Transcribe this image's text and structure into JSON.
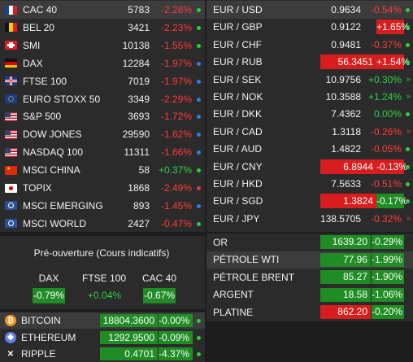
{
  "colors": {
    "neg_bg": "#d71d1d",
    "pos_bg": "#1f8c24",
    "neg_text": "#ff3b3b",
    "pos_text": "#2fd046"
  },
  "indices": [
    {
      "name": "CAC 40",
      "value": "5783",
      "change": "-2.28%",
      "flag": "fr",
      "dir": "neg",
      "dot": "green-dot"
    },
    {
      "name": "BEL 20",
      "value": "3421",
      "change": "-2.23%",
      "flag": "be",
      "dir": "neg",
      "dot": "green-dot"
    },
    {
      "name": "SMI",
      "value": "10138",
      "change": "-1.55%",
      "flag": "ch",
      "dir": "neg",
      "dot": "green-dot"
    },
    {
      "name": "DAX",
      "value": "12284",
      "change": "-1.97%",
      "flag": "de",
      "dir": "neg",
      "dot": "blue-dot"
    },
    {
      "name": "FTSE 100",
      "value": "7019",
      "change": "-1.97%",
      "flag": "gb",
      "dir": "neg",
      "dot": "blue-dot"
    },
    {
      "name": "EURO STOXX 50",
      "value": "3349",
      "change": "-2.29%",
      "flag": "eu",
      "dir": "neg",
      "dot": "blue-dot"
    },
    {
      "name": "S&P 500",
      "value": "3693",
      "change": "-1.72%",
      "flag": "us",
      "dir": "neg",
      "dot": "blue-dot"
    },
    {
      "name": "DOW JONES",
      "value": "29590",
      "change": "-1.62%",
      "flag": "us",
      "dir": "neg",
      "dot": "blue-dot"
    },
    {
      "name": "NASDAQ 100",
      "value": "11311",
      "change": "-1.66%",
      "flag": "us",
      "dir": "neg",
      "dot": "blue-dot"
    },
    {
      "name": "MSCI CHINA",
      "value": "58",
      "change": "+0.37%",
      "flag": "cn",
      "dir": "pos",
      "dot": "green-dot"
    },
    {
      "name": "TOPIX",
      "value": "1868",
      "change": "-2.49%",
      "flag": "jp",
      "dir": "neg",
      "dot": "red-dot"
    },
    {
      "name": "MSCI EMERGING",
      "value": "893",
      "change": "-1.45%",
      "flag": "un",
      "dir": "neg",
      "dot": "blue-dot"
    },
    {
      "name": "MSCI WORLD",
      "value": "2427",
      "change": "-0.47%",
      "flag": "un",
      "dir": "neg",
      "dot": "green-dot"
    }
  ],
  "forex": [
    {
      "pair": "EUR / USD",
      "value": "0.9634",
      "change": "-0.54%",
      "valbg": "",
      "chgstyle": "neg",
      "mark": "dot"
    },
    {
      "pair": "EUR / GBP",
      "value": "0.9122",
      "change": "+1.65%",
      "valbg": "",
      "chgstyle": "bgneg",
      "mark": "dot"
    },
    {
      "pair": "EUR / CHF",
      "value": "0.9481",
      "change": "-0.37%",
      "valbg": "",
      "chgstyle": "neg",
      "mark": "dot"
    },
    {
      "pair": "EUR / RUB",
      "value": "56.3451",
      "change": "+1.54%",
      "valbg": "bgneg",
      "chgstyle": "bgneg",
      "mark": "dot"
    },
    {
      "pair": "EUR / SEK",
      "value": "10.9756",
      "change": "+0.30%",
      "valbg": "",
      "chgstyle": "pos",
      "mark": "arrow"
    },
    {
      "pair": "EUR / NOK",
      "value": "10.3588",
      "change": "+1.24%",
      "valbg": "",
      "chgstyle": "pos",
      "mark": "arrow"
    },
    {
      "pair": "EUR / DKK",
      "value": "7.4362",
      "change": "0.00%",
      "valbg": "",
      "chgstyle": "pos",
      "mark": "dot"
    },
    {
      "pair": "EUR / CAD",
      "value": "1.3118",
      "change": "-0.26%",
      "valbg": "",
      "chgstyle": "neg",
      "mark": "arrow"
    },
    {
      "pair": "EUR / AUD",
      "value": "1.4822",
      "change": "-0.05%",
      "valbg": "",
      "chgstyle": "neg",
      "mark": "dot"
    },
    {
      "pair": "EUR / CNY",
      "value": "6.8944",
      "change": "-0.13%",
      "valbg": "bgneg",
      "chgstyle": "bgneg",
      "mark": "dot"
    },
    {
      "pair": "EUR / HKD",
      "value": "7.5633",
      "change": "-0.51%",
      "valbg": "",
      "chgstyle": "neg",
      "mark": "dot"
    },
    {
      "pair": "EUR / SGD",
      "value": "1.3824",
      "change": "-0.17%",
      "valbg": "bgneg",
      "chgstyle": "bgpos",
      "mark": "dot"
    },
    {
      "pair": "EUR / JPY",
      "value": "138.5705",
      "change": "-0.32%",
      "valbg": "",
      "chgstyle": "neg",
      "mark": "arrow"
    }
  ],
  "pre": {
    "title": "Pré-ouverture (Cours indicatifs)",
    "items": [
      {
        "label": "DAX",
        "value": "-0.79%",
        "style": "bgpos"
      },
      {
        "label": "FTSE 100",
        "value": "+0.04%",
        "style": "pos"
      },
      {
        "label": "CAC 40",
        "value": "-0.67%",
        "style": "bgpos"
      }
    ]
  },
  "commodities": [
    {
      "name": "OR",
      "value": "1639.20",
      "change": "-0.29%"
    },
    {
      "name": "PÉTROLE WTI",
      "value": "77.96",
      "change": "-1.99%"
    },
    {
      "name": "PÉTROLE BRENT",
      "value": "85.27",
      "change": "-1.90%"
    },
    {
      "name": "ARGENT",
      "value": "18.58",
      "change": "-1.06%"
    },
    {
      "name": "PLATINE",
      "value": "862.20",
      "change": "-0.20%"
    }
  ],
  "crypto": [
    {
      "name": "BITCOIN",
      "value": "18804.3600",
      "change": "-0.00%",
      "icon": "₿"
    },
    {
      "name": "ETHEREUM",
      "value": "1292.9500",
      "change": "-0.09%",
      "icon": "◆"
    },
    {
      "name": "RIPPLE",
      "value": "0.4701",
      "change": "-4.37%",
      "icon": "✕"
    }
  ]
}
